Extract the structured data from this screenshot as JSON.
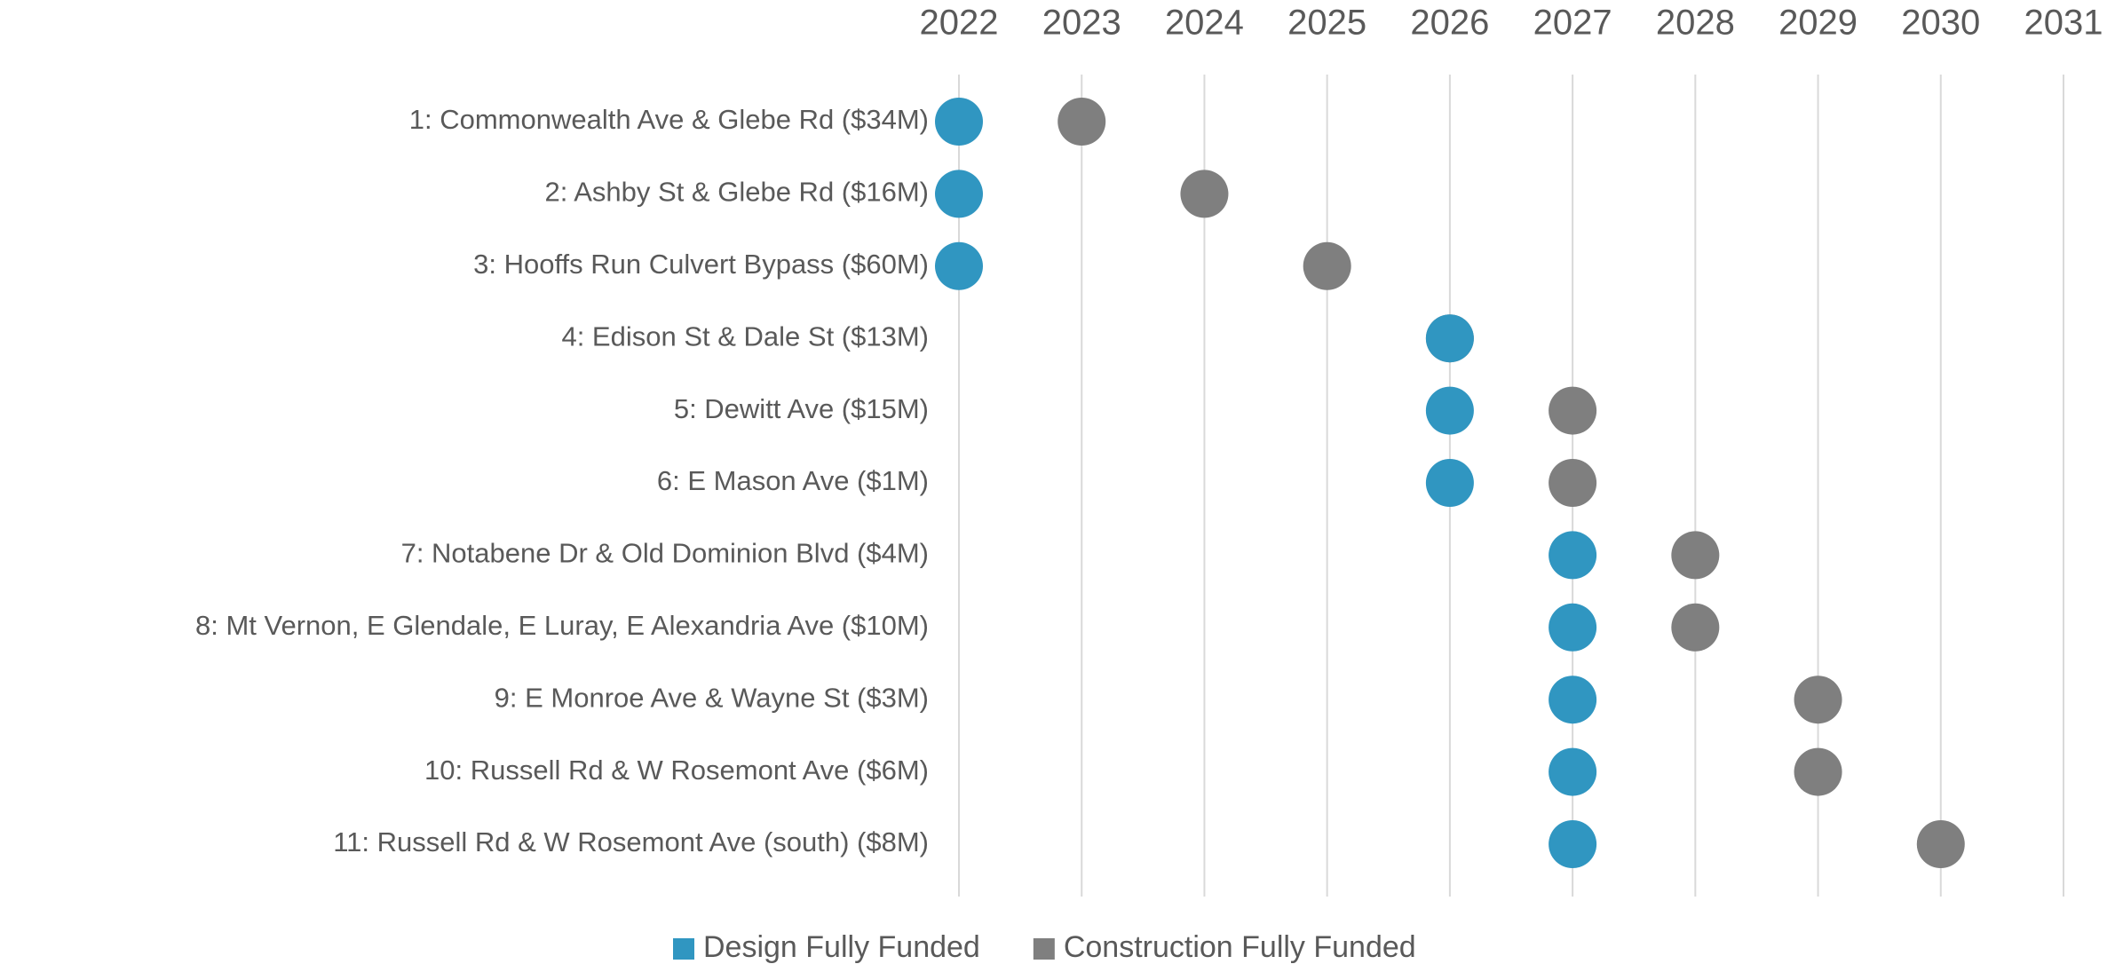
{
  "chart_data": {
    "type": "dot",
    "categories": [
      "1: Commonwealth Ave & Glebe Rd ($34M)",
      "2: Ashby St & Glebe Rd ($16M)",
      "3: Hooffs Run Culvert Bypass ($60M)",
      "4: Edison St & Dale St ($13M)",
      "5: Dewitt Ave ($15M)",
      "6: E Mason Ave ($1M)",
      "7: Notabene Dr & Old Dominion Blvd ($4M)",
      "8: Mt Vernon, E Glendale, E Luray, E Alexandria Ave ($10M)",
      "9: E Monroe Ave & Wayne St ($3M)",
      "10: Russell Rd & W Rosemont Ave ($6M)",
      "11: Russell Rd & W Rosemont Ave (south) ($8M)"
    ],
    "series": [
      {
        "name": "Design Fully Funded",
        "color": "#3096c1",
        "values": [
          2022,
          2022,
          2022,
          2026,
          2026,
          2026,
          2027,
          2027,
          2027,
          2027,
          2027
        ]
      },
      {
        "name": "Construction Fully Funded",
        "color": "#7f7f7f",
        "values": [
          2023,
          2024,
          2025,
          2026,
          2027,
          2027,
          2028,
          2028,
          2029,
          2029,
          2030
        ]
      }
    ],
    "xlim": [
      2022,
      2031
    ],
    "xticks": [
      2022,
      2023,
      2024,
      2025,
      2026,
      2027,
      2028,
      2029,
      2030,
      2031
    ],
    "grid": true,
    "legend": "bottom"
  }
}
